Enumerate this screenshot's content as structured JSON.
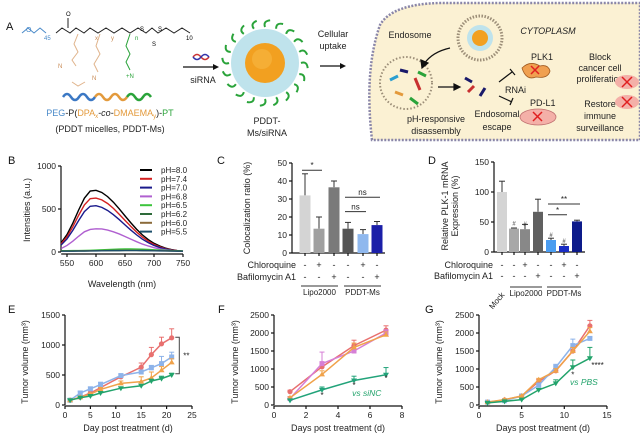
{
  "panel_labels": [
    "A",
    "B",
    "C",
    "D",
    "E",
    "F",
    "G"
  ],
  "schematic": {
    "structure_labels": {
      "peg_repeat": "45",
      "x": "x",
      "y": "y",
      "n": "n",
      "tail": "10",
      "s1": "S",
      "s2": "S",
      "s3": "S",
      "n1": "N",
      "n2": "N",
      "n3": "+N"
    },
    "polymer_name": {
      "peg": "PEG",
      "p_open": "-P(",
      "dpa": "DPA",
      "dpa_sub": "x",
      "co": "-co-",
      "dmaema": "DMAEMA",
      "dmaema_sub": "y",
      "close": ")-",
      "pt": "PT"
    },
    "polymer_caption": "(PDDT micelles, PDDT-Ms)",
    "sirna_label": "siRNA",
    "micelle_label_1": "PDDT-",
    "micelle_label_2": "Ms/siRNA",
    "uptake_label_1": "Cellular",
    "uptake_label_2": "uptake",
    "endosome": "Endosome",
    "cytoplasm": "CYTOPLASM",
    "disassembly_1": "pH-responsive",
    "disassembly_2": "disassembly",
    "escape_1": "Endosomal",
    "escape_2": "escape",
    "rnai": "RNAi",
    "plk1": "PLK1",
    "pdl1": "PD-L1",
    "block_1": "Block",
    "block_2": "cancer cell",
    "block_3": "proliferation",
    "restore_1": "Restore",
    "restore_2": "immune",
    "restore_3": "surveillance",
    "colors": {
      "peg": "#4a8ac9",
      "dpa": "#e39a3c",
      "pt": "#2aa33a",
      "cell": "#fbf1d3",
      "micelle_shell": "#bfe3ec",
      "core": "#f2a020"
    }
  },
  "chart_data": [
    {
      "panel": "B",
      "type": "line",
      "xlabel": "Wavelength (nm)",
      "ylabel": "Intensities (a.u.)",
      "xlim": [
        540,
        750
      ],
      "ylim": [
        0,
        1000
      ],
      "xticks": [
        550,
        600,
        650,
        700,
        750
      ],
      "yticks": [
        0,
        500,
        1000
      ],
      "legend": "top-right",
      "x": [
        540,
        550,
        560,
        570,
        580,
        590,
        600,
        610,
        620,
        630,
        640,
        650,
        660,
        670,
        680,
        690,
        700,
        710,
        720,
        730,
        740,
        750
      ],
      "series": [
        {
          "name": "pH=8.0",
          "color": "#000000",
          "values": [
            109,
            203,
            335,
            487,
            626,
            709,
            717,
            692,
            644,
            579,
            502,
            420,
            340,
            265,
            199,
            145,
            101,
            69,
            45,
            28,
            17,
            10
          ]
        },
        {
          "name": "pH=7.4",
          "color": "#d42020",
          "values": [
            95,
            178,
            293,
            426,
            548,
            620,
            627,
            606,
            564,
            507,
            439,
            368,
            298,
            232,
            174,
            127,
            88,
            60,
            39,
            25,
            15,
            9
          ]
        },
        {
          "name": "pH=7.0",
          "color": "#1a1a8c",
          "values": [
            82,
            152,
            251,
            365,
            470,
            532,
            538,
            519,
            483,
            434,
            377,
            315,
            255,
            199,
            149,
            109,
            76,
            52,
            34,
            21,
            13,
            8
          ]
        },
        {
          "name": "pH=6.8",
          "color": "#b060d0",
          "values": [
            41,
            76,
            126,
            183,
            235,
            262,
            269,
            268,
            255,
            235,
            210,
            180,
            150,
            120,
            92,
            70,
            50,
            36,
            25,
            17,
            11,
            7
          ]
        },
        {
          "name": "pH=6.5",
          "color": "#3cc43c",
          "values": [
            15,
            15,
            16,
            17,
            18,
            20,
            22,
            25,
            28,
            31,
            34,
            35,
            35,
            34,
            32,
            29,
            26,
            22,
            19,
            16,
            14,
            12
          ]
        },
        {
          "name": "pH=6.2",
          "color": "#2e6b3a",
          "values": [
            12,
            12,
            12,
            13,
            13,
            14,
            15,
            16,
            17,
            18,
            19,
            20,
            20,
            20,
            19,
            18,
            17,
            15,
            14,
            13,
            12,
            11
          ]
        },
        {
          "name": "pH=6.0",
          "color": "#8b6b3a",
          "values": [
            11,
            11,
            11,
            12,
            12,
            13,
            14,
            15,
            16,
            17,
            18,
            18,
            18,
            18,
            17,
            16,
            15,
            14,
            13,
            12,
            11,
            10
          ]
        },
        {
          "name": "pH=5.5",
          "color": "#1d4f6b",
          "values": [
            10,
            10,
            10,
            11,
            11,
            12,
            13,
            14,
            15,
            16,
            16,
            17,
            17,
            17,
            16,
            15,
            14,
            13,
            12,
            11,
            10,
            9
          ]
        }
      ]
    },
    {
      "panel": "C",
      "type": "bar",
      "ylabel": "Colocalization ratio (%)",
      "ylim": [
        0,
        50
      ],
      "yticks": [
        0,
        10,
        20,
        30,
        40,
        50
      ],
      "values": [
        32,
        13.5,
        36.5,
        13.5,
        10.5,
        15.5
      ],
      "error_upper": [
        44,
        20,
        40,
        17,
        13,
        17.5
      ],
      "colors": [
        "#d4d4d4",
        "#a0a0a0",
        "#7a7a7a",
        "#555555",
        "#8fb8ee",
        "#1b1fa8"
      ],
      "rows": [
        {
          "label": "Chloroquine",
          "signs": [
            "-",
            "+",
            "-",
            "-",
            "+",
            "-"
          ]
        },
        {
          "label": "Bafilomycin A1",
          "signs": [
            "-",
            "-",
            "+",
            "-",
            "-",
            "+"
          ]
        }
      ],
      "groups": [
        {
          "label": "Lipo2000",
          "from": 0,
          "to": 2
        },
        {
          "label": "PDDT-Ms",
          "from": 3,
          "to": 5
        }
      ],
      "significance": [
        {
          "from": 0,
          "to": 1,
          "label": "*",
          "y": 46
        },
        {
          "from": 3,
          "to": 4,
          "label": "ns",
          "y": 23
        },
        {
          "from": 3,
          "to": 5,
          "label": "ns",
          "y": 31
        }
      ]
    },
    {
      "panel": "D",
      "type": "bar",
      "ylabel": "Relative PLK-1 mRNA Expression (%)",
      "ylabel_lines": [
        "Relative PLK-1 mRNA",
        "Expression (%)"
      ],
      "ylim": [
        0,
        150
      ],
      "yticks": [
        0,
        50,
        100,
        150
      ],
      "values": [
        100,
        39,
        38,
        67,
        20,
        10,
        51
      ],
      "error_upper": [
        118,
        40,
        46,
        88,
        23,
        13,
        53
      ],
      "colors": [
        "#d4d4d4",
        "#a8a8a8",
        "#888888",
        "#606060",
        "#4a9cf0",
        "#1a2dc4",
        "#0d1b8a"
      ],
      "bar_marks": [
        "",
        "#",
        "#",
        "",
        "#",
        "#",
        ""
      ],
      "rows": [
        {
          "label": "Chloroquine",
          "signs": [
            "-",
            "-",
            "+",
            "-",
            "-",
            "+",
            "-"
          ]
        },
        {
          "label": "Bafilomycin A1",
          "signs": [
            "-",
            "-",
            "-",
            "+",
            "-",
            "-",
            "+"
          ]
        }
      ],
      "bar_label_first": "Mock",
      "groups": [
        {
          "label": "Lipo2000",
          "from": 1,
          "to": 3
        },
        {
          "label": "PDDT-Ms",
          "from": 4,
          "to": 6
        }
      ],
      "significance": [
        {
          "from": 4,
          "to": 5,
          "label": "*",
          "y": 62
        },
        {
          "from": 4,
          "to": 6,
          "label": "**",
          "y": 80
        }
      ]
    },
    {
      "panel": "E",
      "type": "line",
      "xlabel": "Day post treatment (d)",
      "ylabel": "Tumor volume (mm³)",
      "xlim": [
        0,
        25
      ],
      "ylim": [
        0,
        1500
      ],
      "xticks": [
        0,
        5,
        10,
        15,
        20,
        25
      ],
      "yticks": [
        0,
        500,
        1000,
        1500
      ],
      "x": [
        1,
        3,
        5,
        7,
        11,
        15,
        17,
        19,
        21
      ],
      "series": [
        {
          "color": "#e8706f",
          "marker": "circle",
          "values": [
            80,
            130,
            200,
            290,
            470,
            630,
            840,
            1020,
            1120
          ],
          "error_upper": [
            10,
            20,
            20,
            30,
            30,
            70,
            120,
            110,
            150
          ]
        },
        {
          "color": "#8db3ea",
          "marker": "square",
          "values": [
            80,
            200,
            270,
            340,
            490,
            550,
            620,
            690,
            800
          ],
          "error_upper": [
            10,
            30,
            30,
            40,
            30,
            30,
            40,
            120,
            80
          ]
        },
        {
          "color": "#f0a24a",
          "marker": "triangle",
          "values": [
            80,
            130,
            180,
            260,
            360,
            390,
            450,
            580,
            710
          ],
          "error_upper": [
            10,
            20,
            20,
            30,
            40,
            80,
            100,
            60,
            60
          ]
        },
        {
          "color": "#22a36b",
          "marker": "triangle-down",
          "values": [
            80,
            120,
            150,
            200,
            280,
            320,
            400,
            440,
            500
          ],
          "error_upper": [
            10,
            10,
            10,
            20,
            20,
            20,
            30,
            40,
            30
          ]
        }
      ],
      "significance": [
        {
          "label": "**",
          "y_from": 1130,
          "y_to": 520
        }
      ]
    },
    {
      "panel": "F",
      "type": "line",
      "xlabel": "Days post treatment (d)",
      "ylabel": "Tumor volume (mm³)",
      "xlim": [
        0,
        8
      ],
      "ylim": [
        0,
        2500
      ],
      "xticks": [
        0,
        2,
        4,
        6,
        8
      ],
      "yticks": [
        0,
        500,
        1000,
        1500,
        2000,
        2500
      ],
      "x": [
        1,
        3,
        5,
        7
      ],
      "series": [
        {
          "color": "#e8706f",
          "marker": "circle",
          "values": [
            370,
            1060,
            1650,
            2080
          ],
          "error_upper": [
            40,
            60,
            150,
            120
          ]
        },
        {
          "color": "#d67fd6",
          "marker": "square",
          "values": [
            180,
            1150,
            1500,
            2000
          ],
          "error_upper": [
            30,
            320,
            60,
            90
          ]
        },
        {
          "color": "#f0a24a",
          "marker": "triangle",
          "values": [
            200,
            850,
            1600,
            1950
          ],
          "error_upper": [
            30,
            100,
            120,
            80
          ]
        },
        {
          "color": "#22a37a",
          "marker": "triangle-down",
          "values": [
            130,
            420,
            680,
            840
          ],
          "error_upper": [
            20,
            80,
            120,
            200
          ]
        }
      ],
      "point_marks": [
        {
          "x": 3,
          "y": 200,
          "label": "*"
        },
        {
          "x": 5,
          "y": 470,
          "label": "*"
        },
        {
          "x": 7,
          "y": 660,
          "label": "*"
        }
      ],
      "annotation": "vs siNC"
    },
    {
      "panel": "G",
      "type": "line",
      "xlabel": "Days post treatment (d)",
      "ylabel": "Tumor volume (mm³)",
      "xlim": [
        0,
        15
      ],
      "ylim": [
        0,
        2500
      ],
      "xticks": [
        0,
        5,
        10,
        15
      ],
      "yticks": [
        0,
        500,
        1000,
        1500,
        2000,
        2500
      ],
      "x": [
        1,
        3,
        5,
        7,
        9,
        11,
        13
      ],
      "series": [
        {
          "color": "#e8706f",
          "marker": "circle",
          "values": [
            80,
            140,
            250,
            650,
            950,
            1500,
            2200
          ],
          "error_upper": [
            20,
            20,
            20,
            60,
            60,
            100,
            150
          ]
        },
        {
          "color": "#8db3ea",
          "marker": "square",
          "values": [
            80,
            120,
            250,
            550,
            1050,
            1650,
            1850
          ],
          "error_upper": [
            20,
            20,
            20,
            60,
            80,
            180,
            40
          ]
        },
        {
          "color": "#f0a24a",
          "marker": "triangle",
          "values": [
            80,
            150,
            250,
            700,
            950,
            1500,
            2050
          ],
          "error_upper": [
            20,
            20,
            20,
            40,
            60,
            100,
            100
          ]
        },
        {
          "color": "#22a36b",
          "marker": "triangle-down",
          "values": [
            60,
            100,
            150,
            420,
            600,
            1050,
            1300
          ],
          "error_upper": [
            10,
            10,
            10,
            30,
            100,
            200,
            300
          ]
        }
      ],
      "point_marks": [
        {
          "x": 13.9,
          "y": 1030,
          "label": "****"
        },
        {
          "x": 11,
          "y": 760,
          "label": "*"
        }
      ],
      "annotation": "vs PBS"
    }
  ]
}
